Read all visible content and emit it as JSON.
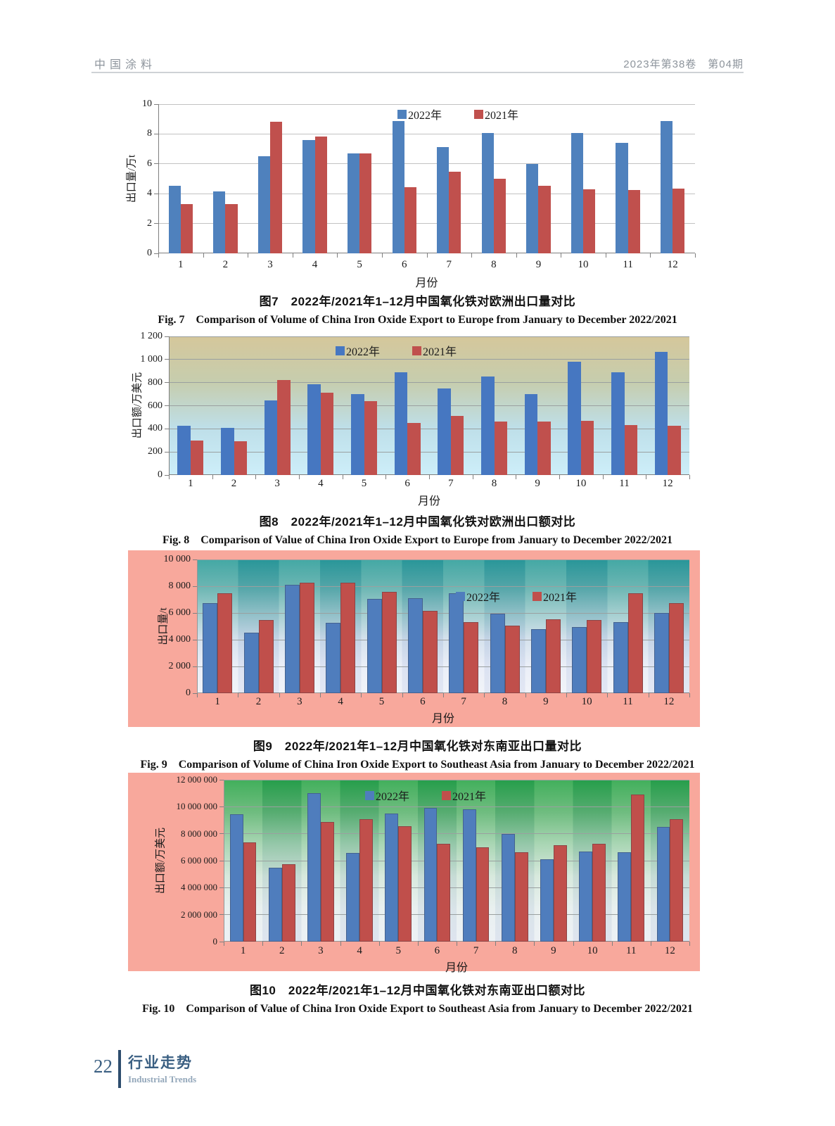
{
  "page": {
    "header": {
      "journal_title": "中国涂料",
      "issue_info": "2023年第38卷　第04期"
    },
    "footer": {
      "page_number": "22",
      "section_title_cn": "行业走势",
      "section_title_en": "Industrial Trends"
    }
  },
  "chart_data": [
    {
      "id": "fig7",
      "type": "bar",
      "title_cn": "图7　2022年/2021年1–12月中国氧化铁对欧洲出口量对比",
      "title_en": "Fig. 7　Comparison of Volume of China Iron Oxide Export to Europe from January to December 2022/2021",
      "ylabel": "出口量/万t",
      "xlabel": "月份",
      "ylim": [
        0,
        10
      ],
      "ytick_values": [
        0,
        2,
        4,
        6,
        8,
        10
      ],
      "ytick_labels": [
        "0",
        "2",
        "4",
        "6",
        "8",
        "10"
      ],
      "categories": [
        "1",
        "2",
        "3",
        "4",
        "5",
        "6",
        "7",
        "8",
        "9",
        "10",
        "11",
        "12"
      ],
      "series": [
        {
          "name": "2022年",
          "color": "#4f81bd",
          "values": [
            4.55,
            4.15,
            6.5,
            7.6,
            6.7,
            8.85,
            7.1,
            8.05,
            6.0,
            8.05,
            7.4,
            8.85
          ]
        },
        {
          "name": "2021年",
          "color": "#c0504d",
          "values": [
            3.3,
            3.3,
            8.8,
            7.85,
            6.7,
            4.45,
            5.45,
            5.0,
            4.55,
            4.3,
            4.25,
            4.35
          ]
        }
      ],
      "legend_position": "top-center-inside",
      "grid": "horizontal",
      "plot_gradient": null,
      "frame_color": null
    },
    {
      "id": "fig8",
      "type": "bar",
      "title_cn": "图8　2022年/2021年1–12月中国氧化铁对欧洲出口额对比",
      "title_en": "Fig. 8　Comparison of Value of China Iron Oxide Export to Europe from January to December 2022/2021",
      "ylabel": "出口额/万美元",
      "xlabel": "月份",
      "ylim": [
        0,
        1200
      ],
      "ytick_values": [
        0,
        200,
        400,
        600,
        800,
        1000,
        1200
      ],
      "ytick_labels": [
        "0",
        "200",
        "400",
        "600",
        "800",
        "1 000",
        "1 200"
      ],
      "categories": [
        "1",
        "2",
        "3",
        "4",
        "5",
        "6",
        "7",
        "8",
        "9",
        "10",
        "11",
        "12"
      ],
      "series": [
        {
          "name": "2022年",
          "color": "#4677c1",
          "values": [
            425,
            410,
            645,
            785,
            700,
            890,
            750,
            850,
            700,
            980,
            890,
            1065
          ]
        },
        {
          "name": "2021年",
          "color": "#c0504d",
          "values": [
            300,
            295,
            825,
            715,
            640,
            450,
            510,
            460,
            460,
            470,
            430,
            425
          ]
        }
      ],
      "legend_position": "top-center-inside",
      "grid": "horizontal",
      "plot_gradient": [
        "#d5c79b",
        "#c6cdae",
        "#bedfe9",
        "#cdeef9"
      ],
      "frame_color": null
    },
    {
      "id": "fig9",
      "type": "bar",
      "title_cn": "图9　2022年/2021年1–12月中国氧化铁对东南亚出口量对比",
      "title_en": "Fig. 9　Comparison of Volume of China Iron Oxide Export to Southeast Asia from January to December 2022/2021",
      "ylabel": "出口量/t",
      "xlabel": "月份",
      "ylim": [
        0,
        10000
      ],
      "ytick_values": [
        0,
        2000,
        4000,
        6000,
        8000,
        10000
      ],
      "ytick_labels": [
        "0",
        "2 000",
        "4 000",
        "6 000",
        "8 000",
        "10 000"
      ],
      "categories": [
        "1",
        "2",
        "3",
        "4",
        "5",
        "6",
        "7",
        "8",
        "9",
        "10",
        "11",
        "12"
      ],
      "series": [
        {
          "name": "2022年",
          "color": "#4f7dbd",
          "values": [
            6750,
            4550,
            8100,
            5250,
            7050,
            7100,
            7450,
            5950,
            4800,
            4950,
            5300,
            6000
          ]
        },
        {
          "name": "2021年",
          "color": "#c04f4b",
          "values": [
            7500,
            5500,
            8250,
            8250,
            7600,
            6150,
            5300,
            5050,
            5550,
            5450,
            7450,
            6750
          ]
        }
      ],
      "legend_position": "upper-middle-inside",
      "grid": "horizontal",
      "plot_gradient": [
        "#1b9591",
        "#49a5a1",
        "#8ec3c4",
        "#ccdbe9",
        "#e6ebf6",
        "#eef1f8"
      ],
      "frame_color": "#f8a89c"
    },
    {
      "id": "fig10",
      "type": "bar",
      "title_cn": "图10　2022年/2021年1–12月中国氧化铁对东南亚出口额对比",
      "title_en": "Fig. 10　Comparison of Value of China Iron Oxide Export to Southeast Asia from January to December 2022/2021",
      "ylabel": "出口额/万美元",
      "xlabel": "月份",
      "ylim": [
        0,
        12000000
      ],
      "ytick_values": [
        0,
        2000000,
        4000000,
        6000000,
        8000000,
        10000000,
        12000000
      ],
      "ytick_labels": [
        "0",
        "2 000 000",
        "4 000 000",
        "6 000 000",
        "8 000 000",
        "10 000 000",
        "12 000 000"
      ],
      "categories": [
        "1",
        "2",
        "3",
        "4",
        "5",
        "6",
        "7",
        "8",
        "9",
        "10",
        "11",
        "12"
      ],
      "series": [
        {
          "name": "2022年",
          "color": "#4f7dbd",
          "values": [
            9450000,
            5500000,
            11000000,
            6600000,
            9500000,
            9900000,
            9800000,
            8000000,
            6100000,
            6700000,
            6650000,
            8500000
          ]
        },
        {
          "name": "2021年",
          "color": "#c04f4b",
          "values": [
            7350000,
            5750000,
            8850000,
            9100000,
            8550000,
            7250000,
            7000000,
            6650000,
            7150000,
            7250000,
            10900000,
            9100000
          ]
        }
      ],
      "legend_position": "top-center-inside",
      "grid": "horizontal",
      "plot_gradient": [
        "#189e38",
        "#4fae63",
        "#97cda4",
        "#cfe4d6",
        "#e4edec",
        "#e9eef3"
      ],
      "frame_color": "#f8a89c"
    }
  ]
}
